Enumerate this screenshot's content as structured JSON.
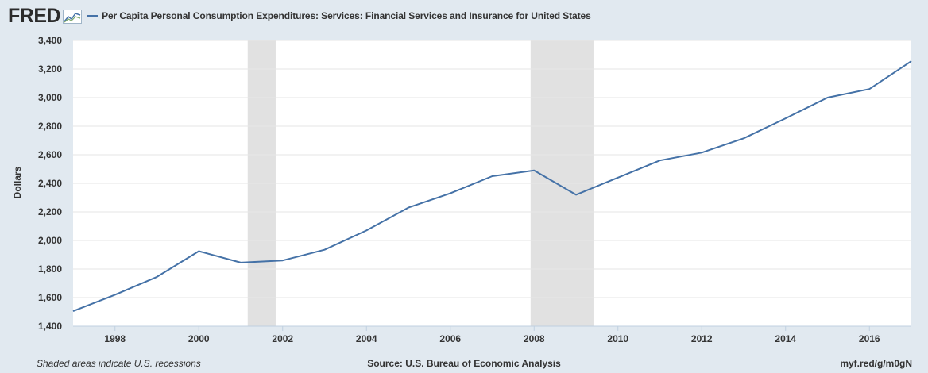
{
  "header": {
    "logo_text": "FRED",
    "logo_icon": "line-graph-icon"
  },
  "footer": {
    "note": "Shaded areas indicate U.S. recessions",
    "source": "Source: U.S. Bureau of Economic Analysis",
    "url": "myf.red/g/m0gN"
  },
  "colors": {
    "series": "#4572a7",
    "recession": "#e1e1e1",
    "background": "#e1e9f0",
    "plot": "#ffffff"
  },
  "chart_data": {
    "type": "line",
    "title": "",
    "xlabel": "",
    "ylabel": "Dollars",
    "ylim": [
      1400,
      3400
    ],
    "xlim": [
      "1997-01-01",
      "2017-01-01"
    ],
    "y_ticks": [
      1400,
      1600,
      1800,
      2000,
      2200,
      2400,
      2600,
      2800,
      3000,
      3200,
      3400
    ],
    "y_tick_labels": [
      "1,400",
      "1,600",
      "1,800",
      "2,000",
      "2,200",
      "2,400",
      "2,600",
      "2,800",
      "3,000",
      "3,200",
      "3,400"
    ],
    "x_tick_labels": [
      "1998",
      "2000",
      "2002",
      "2004",
      "2006",
      "2008",
      "2010",
      "2012",
      "2014",
      "2016"
    ],
    "grid": true,
    "legend_position": "top-left",
    "recessions": [
      [
        "2001-03-01",
        "2001-11-01"
      ],
      [
        "2007-12-01",
        "2009-06-01"
      ]
    ],
    "series": [
      {
        "name": "Per Capita Personal Consumption Expenditures: Services: Financial Services and Insurance for United States",
        "x": [
          "1997",
          "1998",
          "1999",
          "2000",
          "2001",
          "2002",
          "2003",
          "2004",
          "2005",
          "2006",
          "2007",
          "2008",
          "2009",
          "2010",
          "2011",
          "2012",
          "2013",
          "2014",
          "2015",
          "2016",
          "2017"
        ],
        "values": [
          1505,
          1620,
          1745,
          1925,
          1845,
          1860,
          1935,
          2070,
          2230,
          2330,
          2450,
          2490,
          2320,
          2440,
          2560,
          2615,
          2715,
          2855,
          3000,
          3060,
          3255
        ]
      }
    ]
  }
}
